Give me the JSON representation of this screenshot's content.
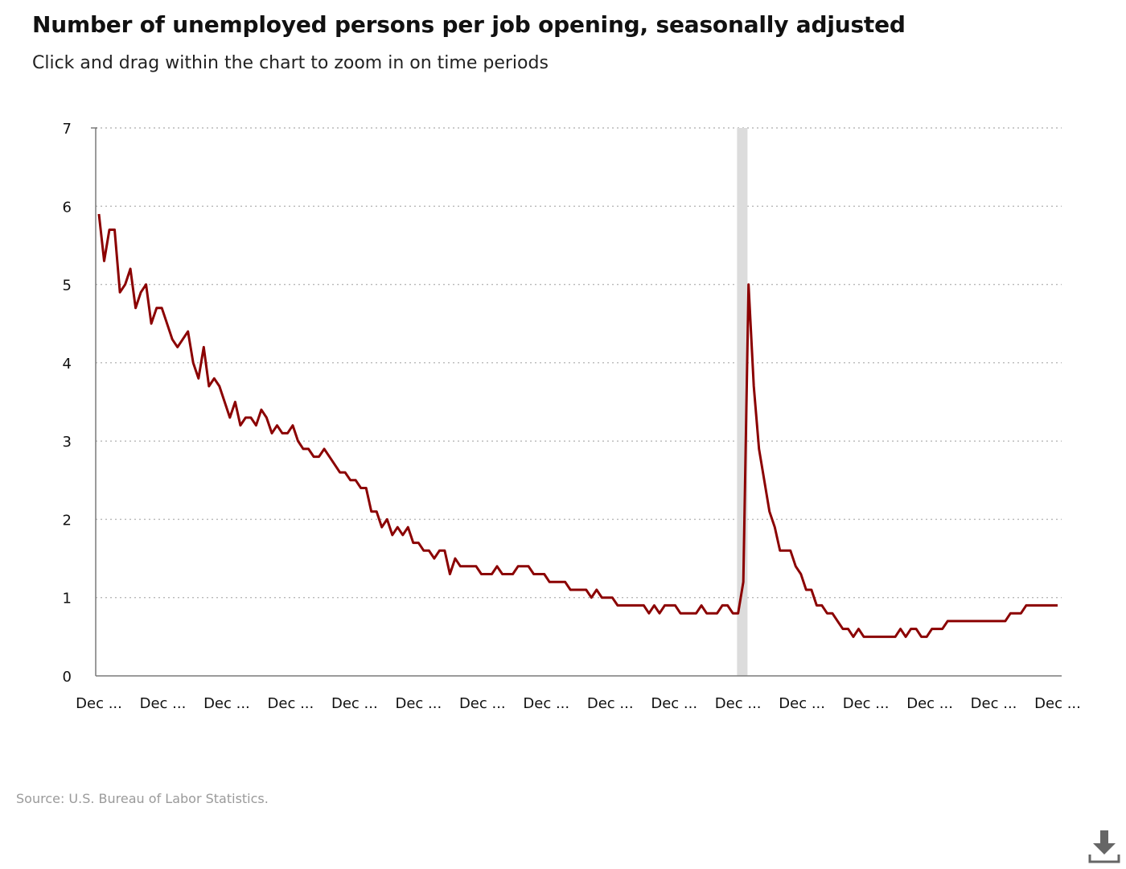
{
  "title": "Number of unemployed persons per job opening, seasonally adjusted",
  "subtitle": "Click and drag within the chart to zoom in on time periods",
  "source": "Source: U.S. Bureau of Labor Statistics.",
  "download_icon": "download-icon",
  "colors": {
    "line": "#8b0000",
    "recession": "#dcdcdc",
    "grid": "#b8b8b8",
    "axis": "#7a7a7a"
  },
  "chart_data": {
    "type": "line",
    "title": "Number of unemployed persons per job opening, seasonally adjusted",
    "xlabel": "",
    "ylabel": "",
    "ylim": [
      0,
      7
    ],
    "yticks": [
      0,
      1,
      2,
      3,
      4,
      5,
      6,
      7
    ],
    "x_tick_labels": [
      "Dec ...",
      "Dec ...",
      "Dec ...",
      "Dec ...",
      "Dec ...",
      "Dec ...",
      "Dec ...",
      "Dec ...",
      "Dec ...",
      "Dec ...",
      "Dec ...",
      "Dec ...",
      "Dec ...",
      "Dec ...",
      "Dec ...",
      "Dec ..."
    ],
    "grid": true,
    "recession_shading": [
      {
        "start_index": 121.8,
        "end_index": 123.8
      }
    ],
    "series": [
      {
        "values": [
          5.9,
          5.3,
          5.7,
          5.7,
          4.9,
          5.0,
          5.2,
          4.7,
          4.9,
          5.0,
          4.5,
          4.7,
          4.7,
          4.5,
          4.3,
          4.2,
          4.3,
          4.4,
          4.0,
          3.8,
          4.2,
          3.7,
          3.8,
          3.7,
          3.5,
          3.3,
          3.5,
          3.2,
          3.3,
          3.3,
          3.2,
          3.4,
          3.3,
          3.1,
          3.2,
          3.1,
          3.1,
          3.2,
          3.0,
          2.9,
          2.9,
          2.8,
          2.8,
          2.9,
          2.8,
          2.7,
          2.6,
          2.6,
          2.5,
          2.5,
          2.4,
          2.4,
          2.1,
          2.1,
          1.9,
          2.0,
          1.8,
          1.9,
          1.8,
          1.9,
          1.7,
          1.7,
          1.6,
          1.6,
          1.5,
          1.6,
          1.6,
          1.3,
          1.5,
          1.4,
          1.4,
          1.4,
          1.4,
          1.3,
          1.3,
          1.3,
          1.4,
          1.3,
          1.3,
          1.3,
          1.4,
          1.4,
          1.4,
          1.3,
          1.3,
          1.3,
          1.2,
          1.2,
          1.2,
          1.2,
          1.1,
          1.1,
          1.1,
          1.1,
          1.0,
          1.1,
          1.0,
          1.0,
          1.0,
          0.9,
          0.9,
          0.9,
          0.9,
          0.9,
          0.9,
          0.8,
          0.9,
          0.8,
          0.9,
          0.9,
          0.9,
          0.8,
          0.8,
          0.8,
          0.8,
          0.9,
          0.8,
          0.8,
          0.8,
          0.9,
          0.9,
          0.8,
          0.8,
          1.2,
          5.0,
          3.7,
          2.9,
          2.5,
          2.1,
          1.9,
          1.6,
          1.6,
          1.6,
          1.4,
          1.3,
          1.1,
          1.1,
          0.9,
          0.9,
          0.8,
          0.8,
          0.7,
          0.6,
          0.6,
          0.5,
          0.6,
          0.5,
          0.5,
          0.5,
          0.5,
          0.5,
          0.5,
          0.5,
          0.6,
          0.5,
          0.6,
          0.6,
          0.5,
          0.5,
          0.6,
          0.6,
          0.6,
          0.7,
          0.7,
          0.7,
          0.7,
          0.7,
          0.7,
          0.7,
          0.7,
          0.7,
          0.7,
          0.7,
          0.7,
          0.8,
          0.8,
          0.8,
          0.9,
          0.9,
          0.9,
          0.9,
          0.9,
          0.9,
          0.9
        ]
      }
    ]
  }
}
